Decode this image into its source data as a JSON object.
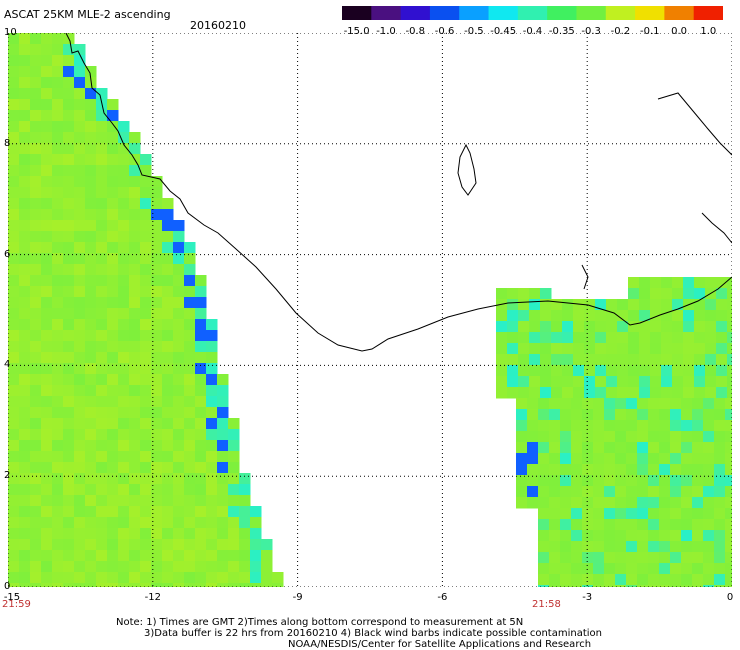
{
  "header": {
    "title": "ASCAT 25KM MLE-2 ascending",
    "date": "20160210"
  },
  "colorbar": {
    "labels": [
      "-15.0",
      "-1.0",
      "-0.8",
      "-0.6",
      "-0.5",
      "-0.45",
      "-0.4",
      "-0.35",
      "-0.3",
      "-0.2",
      "-0.1",
      "0.0",
      "1.0"
    ],
    "colors": [
      "#1a0020",
      "#4a1080",
      "#3010d0",
      "#0a50f0",
      "#0aa0ff",
      "#10e8f0",
      "#30f0b0",
      "#40f060",
      "#70f040",
      "#c0f020",
      "#f0e000",
      "#f08000",
      "#f02000"
    ]
  },
  "axes": {
    "x_ticks": [
      "-15",
      "-12",
      "-9",
      "-6",
      "-3",
      "0"
    ],
    "y_ticks": [
      "0",
      "2",
      "4",
      "6",
      "8",
      "10"
    ]
  },
  "times": {
    "left": "21:59",
    "right": "21:58"
  },
  "footer": {
    "line1": "Note: 1) Times are GMT 2)Times along bottom correspond to measurement at 5N",
    "line2": "3)Data buffer is 22 hrs from 20160210 4) Black wind barbs indicate possible contamination",
    "line3": "NOAA/NESDIS/Center for Satellite Applications and Research"
  },
  "colors": {
    "swath_green": "#7ef03c",
    "swath_yellowgreen": "#a6f02a",
    "swath_cyan": "#28f0c8",
    "swath_blue": "#1060ff"
  }
}
